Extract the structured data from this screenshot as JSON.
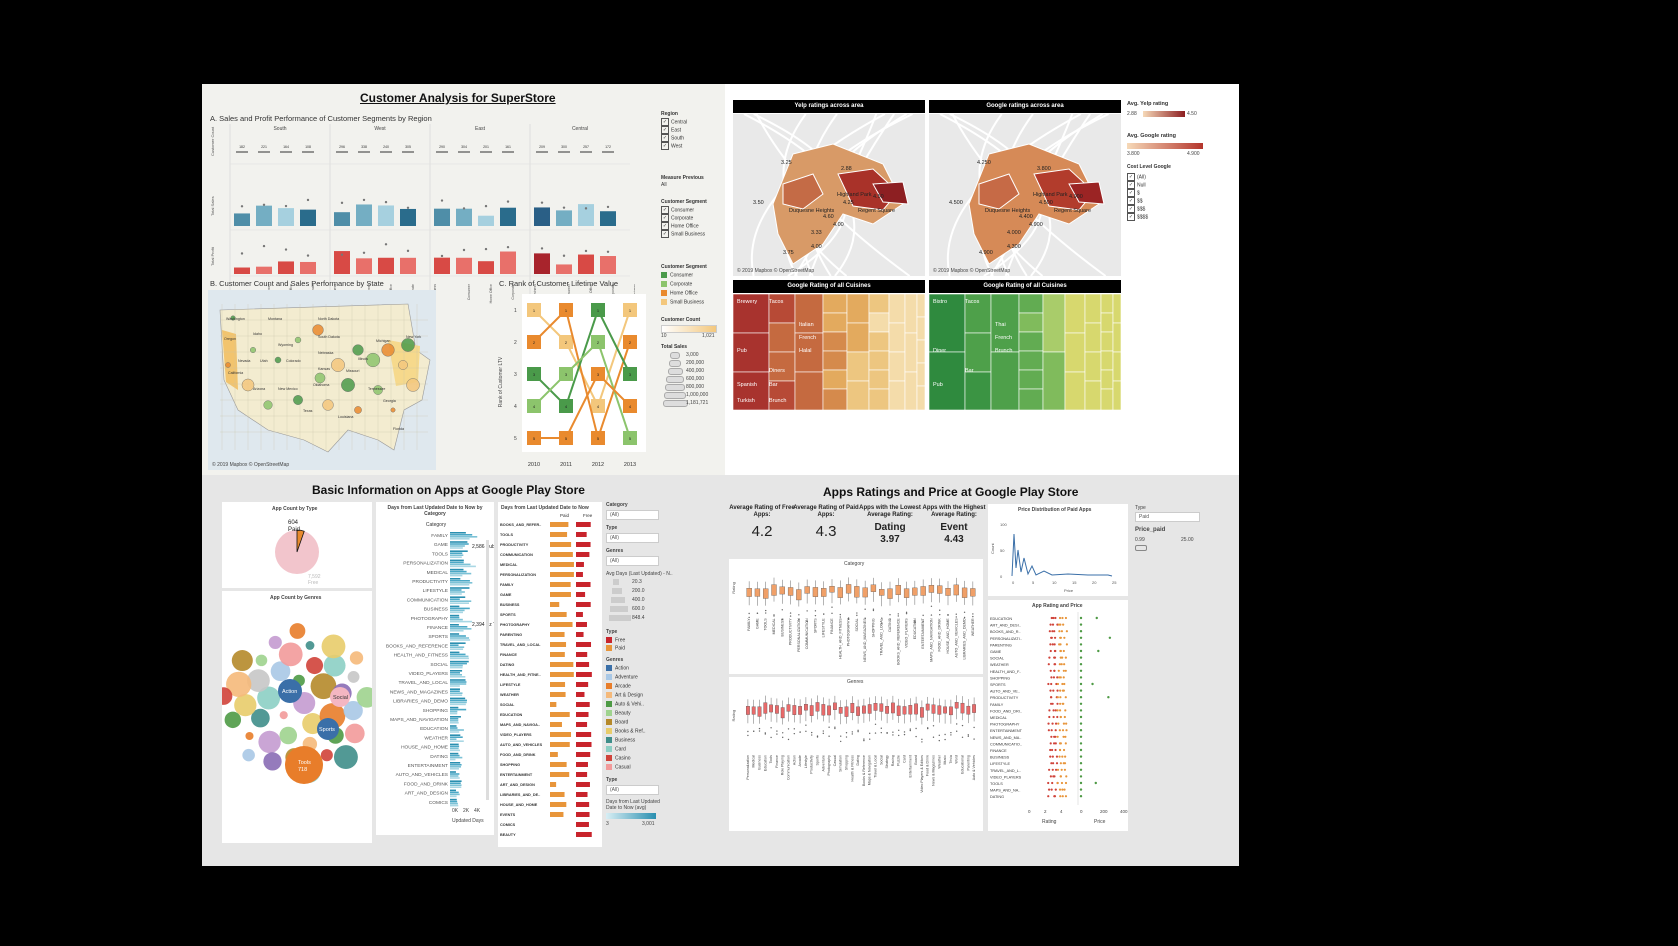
{
  "superstore": {
    "title": "Customer Analysis for SuperStore",
    "sectionA": "A. Sales and Profit Performance of Customer Segments by Region",
    "sectionB": "B. Customer Count and Sales Performance by State",
    "sectionC": "C. Rank of Customer Lifetime Value",
    "regions": [
      "South",
      "West",
      "East",
      "Central"
    ],
    "count_values": [
      "182",
      "221",
      "164",
      "108",
      "296",
      "338",
      "240",
      "305",
      "290",
      "304",
      "201",
      "161",
      "209",
      "300",
      "257",
      "172"
    ],
    "segments": [
      "Consumer",
      "Home Office",
      "Corporate",
      "Small Business"
    ],
    "filter_title": "Region",
    "region_filters": [
      "Central",
      "East",
      "South",
      "West"
    ],
    "measure_title": "Measure Previous",
    "measure_value": "All",
    "segment_filter_title": "Customer Segment",
    "segment_filters": [
      "Consumer",
      "Corporate",
      "Home Office",
      "Small Business"
    ],
    "legend_title": "Customer Segment",
    "legend_items": [
      {
        "label": "Consumer",
        "color": "#4a9a4a"
      },
      {
        "label": "Corporate",
        "color": "#8cc46c"
      },
      {
        "label": "Home Office",
        "color": "#e98a2e"
      },
      {
        "label": "Small Business",
        "color": "#f3c77c"
      }
    ],
    "count_legend_title": "Customer Count",
    "count_legend_min": "10",
    "count_legend_max": "1,021",
    "sales_legend_title": "Total Sales",
    "sales_legend_values": [
      "3,000",
      "200,000",
      "400,000",
      "600,000",
      "800,000",
      "1,000,000",
      "1,181,721"
    ],
    "map_credit": "© 2019 Mapbox © OpenStreetMap",
    "rank_ylabel": "Rank of Customer LTV",
    "rank_years": [
      "2010",
      "2011",
      "2012",
      "2013"
    ],
    "rank_ticks": [
      "1",
      "2",
      "3",
      "4",
      "5"
    ],
    "state_labels": [
      "Washington",
      "Montana",
      "North Dakota",
      "Oregon",
      "Idaho",
      "South Dakota",
      "Wyoming",
      "Nebraska",
      "Nevada",
      "Utah",
      "Colorado",
      "Kansas",
      "California",
      "Arizona",
      "New Mexico",
      "Oklahoma",
      "Texas",
      "Missouri",
      "Illinois",
      "Michigan",
      "New York",
      "Tennessee",
      "Georgia",
      "Louisiana",
      "Florida"
    ]
  },
  "yelp": {
    "map1_title": "Yelp ratings across area",
    "map2_title": "Google ratings across area",
    "map1_labels": [
      "3.25",
      "2.88",
      "Highland Park",
      "4.25",
      "4.50",
      "Duquesne Heights",
      "3.50",
      "Regent Square",
      "4.60",
      "4.00",
      "3.33",
      "3.75",
      "4.00"
    ],
    "map2_labels": [
      "4.250",
      "3.800",
      "Highland Park",
      "4.500",
      "4.900",
      "Duquesne Heights",
      "4.500",
      "Regent Square",
      "4.400",
      "4.900",
      "4.000",
      "4.900",
      "4.300"
    ],
    "map_credit": "© 2019 Mapbox © OpenStreetMap",
    "yelp_legend_title": "Avg. Yelp rating",
    "yelp_min": "2.88",
    "yelp_max": "4.50",
    "google_legend_title": "Avg. Google rating",
    "google_min": "3.800",
    "google_max": "4.900",
    "cost_title": "Cost Level Google",
    "cost_filters": [
      "(All)",
      "Null",
      "$",
      "$$",
      "$$$",
      "$$$$"
    ],
    "tree1_title": "Google Rating of all Cuisines",
    "tree2_title": "Google Rating of all Cuisines",
    "tree1_labels": [
      "Brewery",
      "Tacos",
      "Italian",
      "French",
      "Halal",
      "Pub",
      "Diners",
      "Spanish",
      "Bar",
      "Turkish",
      "Brunch"
    ],
    "tree2_labels": [
      "Bistro",
      "Tacos",
      "Thai",
      "French",
      "Brunch",
      "Diner",
      "Bar",
      "Pub"
    ]
  },
  "apps": {
    "title": "Basic Information on Apps at Google Play Store",
    "type_title": "App Count by Type",
    "pie": {
      "paid_label": "Paid",
      "paid_value": "604",
      "free_label": "Free",
      "free_value": "7,592"
    },
    "genres_title": "App Count by Genres",
    "bubbles": [
      {
        "label": "Action"
      },
      {
        "label": "Social"
      },
      {
        "label": "Sports"
      },
      {
        "label": "Tools",
        "value": "718"
      }
    ],
    "days_title": "Days from Last Updated Date to Now by Category",
    "category_header": "Category",
    "categories": [
      "FAMILY",
      "GAME",
      "TOOLS",
      "PERSONALIZATION",
      "MEDICAL",
      "PRODUCTIVITY",
      "LIFESTYLE",
      "COMMUNICATION",
      "BUSINESS",
      "PHOTOGRAPHY",
      "FINANCE",
      "SPORTS",
      "BOOKS_AND_REFERENCE",
      "HEALTH_AND_FITNESS",
      "SOCIAL",
      "VIDEO_PLAYERS",
      "TRAVEL_AND_LOCAL",
      "NEWS_AND_MAGAZINES",
      "LIBRARIES_AND_DEMO",
      "SHOPPING",
      "MAPS_AND_NAVIGATION",
      "EDUCATION",
      "WEATHER",
      "HOUSE_AND_HOME",
      "DATING",
      "ENTERTAINMENT",
      "AUTO_AND_VEHICLES",
      "FOOD_AND_DRINK",
      "ART_AND_DESIGN",
      "COMICS"
    ],
    "bar_annot1": "2,586 Bubble",
    "bar_annot2": "2,394 Ez Textin",
    "x_ticks": [
      "0K",
      "2K",
      "4K"
    ],
    "x_label": "Updated Days",
    "days2_title": "Days from Last Updated Date to Now",
    "paid_col": "Paid",
    "free_col": "Free",
    "cats2": [
      "BOOKS_AND_REFER..",
      "TOOLS",
      "PRODUCTIVITY",
      "COMMUNICATION",
      "MEDICAL",
      "PERSONALIZATION",
      "FAMILY",
      "GAME",
      "BUSINESS",
      "SPORTS",
      "PHOTOGRAPHY",
      "PARENTING",
      "TRAVEL_AND_LOCAL",
      "FINANCE",
      "DATING",
      "HEALTH_AND_FITNE..",
      "LIFESTYLE",
      "WEATHER",
      "SOCIAL",
      "EDUCATION",
      "MAPS_AND_NAVIGA..",
      "VIDEO_PLAYERS",
      "AUTO_AND_VEHICLES",
      "FOOD_AND_DRINK",
      "SHOPPING",
      "ENTERTAINMENT",
      "ART_AND_DESIGN",
      "LIBRARIES_AND_DE..",
      "HOUSE_AND_HOME",
      "EVENTS",
      "COMICS",
      "BEAUTY"
    ],
    "filters": [
      {
        "label": "Category",
        "value": "(All)"
      },
      {
        "label": "Type",
        "value": "(All)"
      },
      {
        "label": "Genres",
        "value": "(All)"
      }
    ],
    "avg_title": "Avg Days (Last Updated) - N..",
    "avg_values": [
      "20.3",
      "200.0",
      "400.0",
      "600.0",
      "848.4"
    ],
    "type_legend_title": "Type",
    "type_legend": [
      {
        "label": "Free",
        "color": "#c8242c"
      },
      {
        "label": "Paid",
        "color": "#e8953a"
      }
    ],
    "genres_legend_title": "Genres",
    "genres_legend": [
      {
        "label": "Action",
        "color": "#3a6fa8"
      },
      {
        "label": "Adventure",
        "color": "#a9c8e6"
      },
      {
        "label": "Arcade",
        "color": "#e87d2a"
      },
      {
        "label": "Art & Design",
        "color": "#f5b97a"
      },
      {
        "label": "Auto & Vehi..",
        "color": "#4e9a45"
      },
      {
        "label": "Beauty",
        "color": "#9fd38e"
      },
      {
        "label": "Board",
        "color": "#b5892a"
      },
      {
        "label": "Books & Ref..",
        "color": "#e8cc6a"
      },
      {
        "label": "Business",
        "color": "#3f8e8a"
      },
      {
        "label": "Card",
        "color": "#8ccfc4"
      },
      {
        "label": "Casino",
        "color": "#d0433a"
      },
      {
        "label": "Casual",
        "color": "#f29a9a"
      }
    ],
    "type2_label": "Type",
    "type2_value": "(All)",
    "days_legend_title": "Days from Last Updated Date to Now (avg)",
    "days_legend_min": "3",
    "days_legend_max": "3,001"
  },
  "ratings": {
    "title": "Apps Ratings and Price at Google Play Store",
    "kpis": [
      {
        "label": "Average Rating of Free Apps:",
        "value": "4.2"
      },
      {
        "label": "Average Rating of Paid Apps:",
        "value": "4.3"
      },
      {
        "label": "Apps with the Lowest Average Rating:",
        "value": "Dating",
        "sub": "3.97"
      },
      {
        "label": "Apps with the Highest Average Rating:",
        "value": "Event",
        "sub": "4.43"
      }
    ],
    "box1_title": "Category",
    "box2_title": "Genres",
    "rating_label": "Rating",
    "box1_cats": [
      "FAMILY",
      "GAME",
      "TOOLS",
      "MEDICAL",
      "BUSINESS",
      "PRODUCTIVITY",
      "PERSONALIZATION",
      "COMMUNICATION",
      "SPORTS",
      "LIFESTYLE",
      "FINANCE",
      "HEALTH_AND_FITNESS",
      "PHOTOGRAPHY",
      "SOCIAL",
      "NEWS_AND_MAGAZINES",
      "SHOPPING",
      "TRAVEL_AND_LOCAL",
      "DATING",
      "BOOKS_AND_REFERENCE",
      "VIDEO_PLAYERS",
      "EDUCATION",
      "ENTERTAINMENT",
      "MAPS_AND_NAVIGATION",
      "FOOD_AND_DRINK",
      "HOUSE_AND_HOME",
      "AUTO_AND_VEHICLES",
      "LIBRARIES_AND_DEMO",
      "WEATHER"
    ],
    "box2_cats": [
      "Personalization",
      "Medical",
      "Business",
      "Education",
      "Tools",
      "Finance",
      "Role Playing",
      "Communication",
      "Action",
      "Arcade",
      "Lifestyle",
      "Productivity",
      "Sports",
      "Adventure",
      "Photography",
      "Casual",
      "Simulation",
      "Shopping",
      "Health & Fitness",
      "Dating",
      "Books & Reference",
      "Maps & Navigation",
      "Travel & Local",
      "Social",
      "Strategy",
      "Racing",
      "Puzzle",
      "Card",
      "Entertainment",
      "Board",
      "Video Players & Editors",
      "Food & Drink",
      "News & Magazines",
      "Weather",
      "Music",
      "Trivia",
      "Word",
      "Educational",
      "Parenting",
      "Auto & Vehicles"
    ],
    "price_title": "Price Distribution of Paid Apps",
    "price_ylabel": "Count",
    "price_xlabel": "Price",
    "price_yticks": [
      "0",
      "50",
      "100"
    ],
    "price_xticks": [
      "0",
      "5",
      "10",
      "15",
      "20",
      "25"
    ],
    "type_filter_label": "Type",
    "type_filter_value": "Paid",
    "price_paid_label": "Price_paid",
    "price_paid_min": "0.99",
    "price_paid_max": "25.00",
    "arp_title": "App Rating and Price",
    "arp_cats": [
      "EDUCATION",
      "ART_AND_DESI..",
      "BOOKS_AND_R..",
      "PERSONALIZATI..",
      "PARENTING",
      "GAME",
      "SOCIAL",
      "WEATHER",
      "HEALTH_AND_F..",
      "SHOPPING",
      "SPORTS",
      "AUTO_AND_VE..",
      "PRODUCTIVITY",
      "FAMILY",
      "FOOD_AND_DRI..",
      "MEDICAL",
      "PHOTOGRAPHY",
      "ENTERTAINMENT",
      "NEWS_AND_MA..",
      "COMMUNICATIO..",
      "FINANCE",
      "BUSINESS",
      "LIFESTYLE",
      "TRAVEL_AND_L..",
      "VIDEO_PLAYERS",
      "TOOLS",
      "MAPS_AND_NA..",
      "DATING"
    ],
    "rating_axis_label": "Rating",
    "rating_ticks": [
      "0",
      "2",
      "4"
    ],
    "price_axis_label": "Price",
    "price_ticks": [
      "0",
      "200",
      "400"
    ]
  }
}
